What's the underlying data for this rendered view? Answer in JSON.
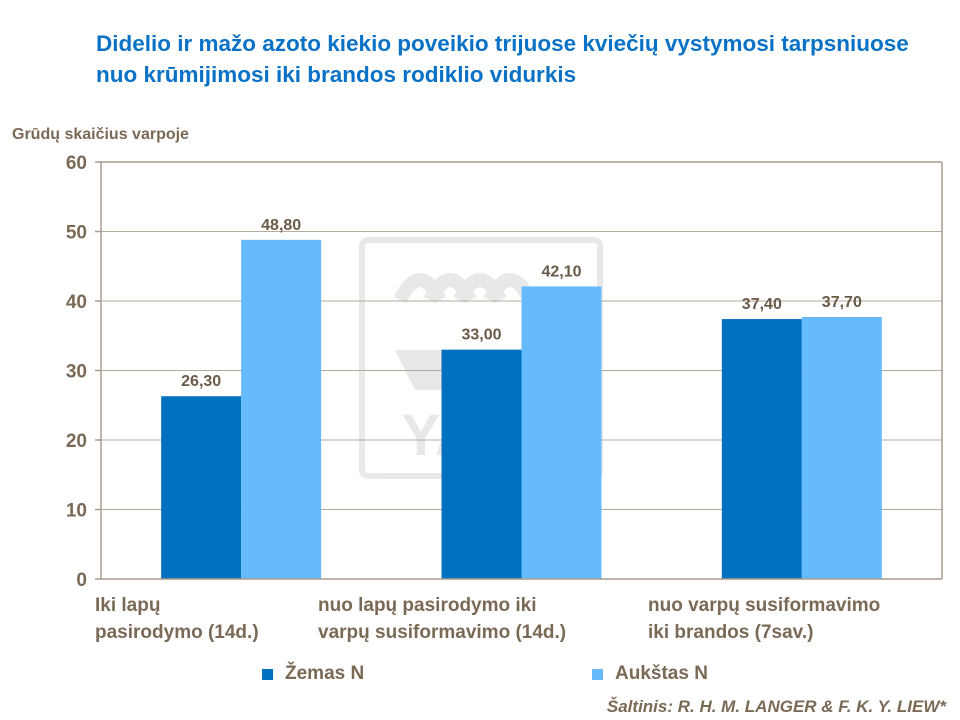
{
  "chart_data": {
    "type": "bar",
    "title": "Didelio ir mažo azoto kiekio poveikio trijuose kviečių vystymosi tarpsniuose nuo krūmijimosi iki brandos rodiklio vidurkis",
    "ylabel": "Grūdų skaičius varpoje",
    "xlabel": "",
    "ylim": [
      0,
      60
    ],
    "yticks": [
      "0",
      "10",
      "20",
      "30",
      "40",
      "50",
      "60"
    ],
    "grid": true,
    "categories": [
      [
        "Iki lapų",
        "pasirodymo (14d.)"
      ],
      [
        "nuo lapų pasirodymo iki",
        "varpų susiformavimo (14d.)"
      ],
      [
        "nuo varpų susiformavimo",
        "iki brandos (7sav.)"
      ]
    ],
    "series": [
      {
        "name": "Žemas N",
        "color": "#0070c0",
        "values": [
          26.3,
          33.0,
          37.4
        ],
        "labels": [
          "26,30",
          "33,00",
          "37,40"
        ]
      },
      {
        "name": "Aukštas N",
        "color": "#66bbff",
        "values": [
          48.8,
          42.1,
          37.7
        ],
        "labels": [
          "48,80",
          "42,10",
          "37,70"
        ]
      }
    ],
    "legend_position": "bottom"
  },
  "watermark": "YARA",
  "source": "Šaltinis: R. H. M. LANGER & F. K. Y. LIEW*"
}
